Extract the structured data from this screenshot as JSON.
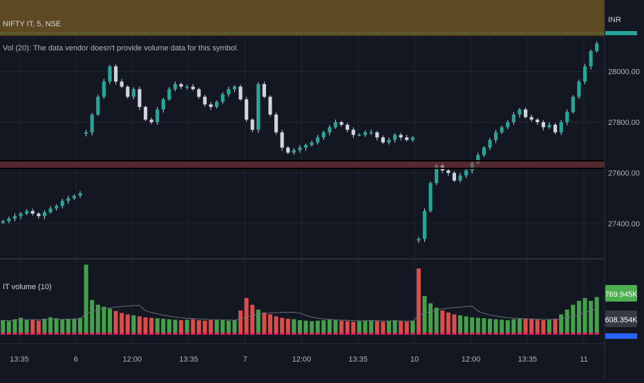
{
  "header": {
    "symbol_legend": "NIFTY IT, 5, NSE",
    "volume_notice": "Vol (20): The data vendor doesn't provide volume data for this symbol.",
    "indicator_legend": "IT volume (10)",
    "currency": "INR"
  },
  "colors": {
    "background": "#131722",
    "grid": "#1f2433",
    "up": "#26a69a",
    "down": "#ef5350",
    "wick": "#d1d4dc",
    "vol_up": "#4caf50",
    "vol_down": "#ef5350",
    "vol_avg": "#6b6f7a",
    "vol_base": "#e91e63",
    "zone": "#6b5423",
    "resistance": "#8a3b3b",
    "badge_green": "#4caf50",
    "badge_dark": "#363a45",
    "badge_blue": "#2962ff"
  },
  "chart_data": {
    "type": "candlestick",
    "symbol": "NIFTY IT",
    "interval": "5",
    "exchange": "NSE",
    "price_axis": {
      "ticks": [
        "28000.00",
        "27800.00",
        "27600.00",
        "27400.00"
      ],
      "ylim": [
        27270,
        28140
      ]
    },
    "time_axis": {
      "labels": [
        "13:35",
        "6",
        "12:00",
        "13:35",
        "7",
        "12:00",
        "13:35",
        "10",
        "12:00",
        "13:35",
        "11"
      ]
    },
    "price_closes": [
      27410,
      27420,
      27430,
      27440,
      27450,
      27440,
      27430,
      27445,
      27460,
      27470,
      27490,
      27500,
      27510,
      27520,
      27760,
      27830,
      27900,
      27960,
      28020,
      27960,
      27940,
      27900,
      27930,
      27860,
      27810,
      27800,
      27850,
      27890,
      27930,
      27950,
      27940,
      27940,
      27930,
      27900,
      27870,
      27860,
      27880,
      27910,
      27930,
      27940,
      27890,
      27810,
      27770,
      27950,
      27900,
      27830,
      27760,
      27700,
      27680,
      27690,
      27700,
      27710,
      27720,
      27740,
      27760,
      27780,
      27800,
      27790,
      27770,
      27750,
      27750,
      27760,
      27760,
      27740,
      27720,
      27730,
      27750,
      27740,
      27730,
      27740,
      27340,
      27450,
      27560,
      27630,
      27610,
      27600,
      27570,
      27590,
      27610,
      27640,
      27670,
      27700,
      27730,
      27760,
      27780,
      27800,
      27830,
      27850,
      27820,
      27810,
      27800,
      27780,
      27790,
      27760,
      27800,
      27840,
      27900,
      27960,
      28020,
      28080,
      28110
    ],
    "resistance_band": [
      27618,
      27648
    ],
    "session_breaks": [
      14,
      70
    ],
    "volume": {
      "name": "IT volume (10)",
      "last_value": "769.945K",
      "average_value": "608.354K",
      "values": [
        300,
        280,
        320,
        350,
        300,
        310,
        290,
        330,
        360,
        340,
        310,
        320,
        330,
        350,
        1450,
        720,
        620,
        580,
        540,
        490,
        450,
        420,
        400,
        380,
        360,
        350,
        340,
        330,
        320,
        310,
        300,
        310,
        320,
        300,
        290,
        300,
        310,
        300,
        290,
        300,
        500,
        760,
        620,
        520,
        460,
        420,
        380,
        350,
        330,
        320,
        300,
        290,
        280,
        290,
        300,
        310,
        300,
        290,
        280,
        270,
        280,
        290,
        300,
        280,
        270,
        290,
        300,
        280,
        270,
        290,
        1370,
        800,
        650,
        560,
        500,
        460,
        420,
        400,
        380,
        360,
        350,
        340,
        330,
        320,
        310,
        300,
        320,
        340,
        330,
        320,
        310,
        300,
        310,
        330,
        420,
        520,
        620,
        700,
        760,
        700,
        780
      ]
    }
  }
}
